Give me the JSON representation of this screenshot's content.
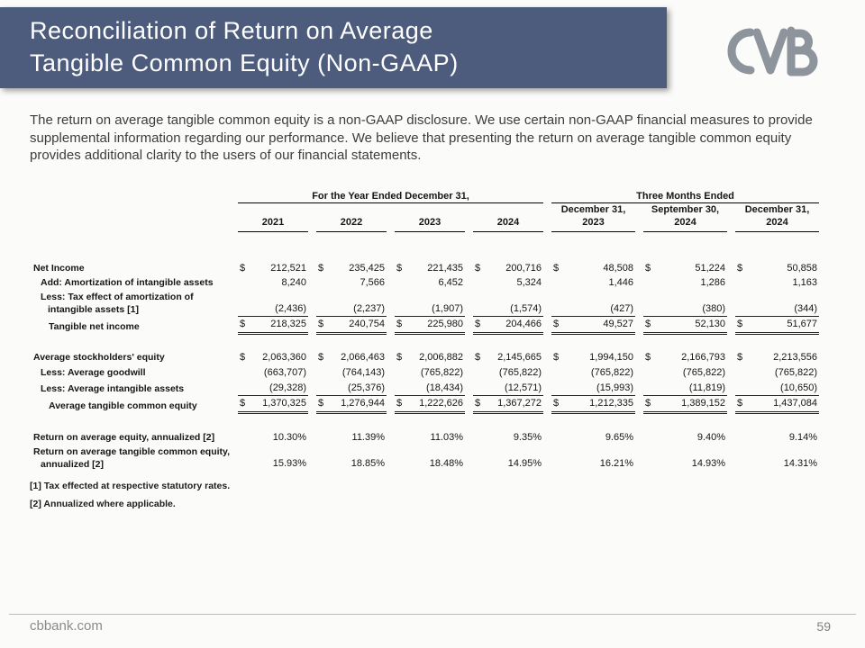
{
  "colors": {
    "band": "#4d5c7c",
    "logo": "#8e949b",
    "body_text": "#3d3d3d"
  },
  "header": {
    "title_line1": "Reconciliation of Return on Average",
    "title_line2": "Tangible Common Equity (Non-GAAP)",
    "logo_icon": "cvb-logo"
  },
  "intro": "The return on average tangible common equity is a non-GAAP disclosure. We use certain non-GAAP financial measures to provide supplemental information regarding our performance. We believe that presenting the return on average tangible common equity provides additional clarity to the users of our financial statements.",
  "table": {
    "group_headers": [
      {
        "label": "For the Year Ended December 31,",
        "span": 4
      },
      {
        "label": "Three Months Ended",
        "span": 3
      }
    ],
    "column_headers": [
      "2021",
      "2022",
      "2023",
      "2024",
      "December 31,\n2023",
      "September 30,\n2024",
      "December 31,\n2024"
    ],
    "rows": [
      {
        "type": "spacer",
        "h": 32
      },
      {
        "label": "Net Income",
        "indent": 0,
        "dollar": true,
        "values": [
          "212,521",
          "235,425",
          "221,435",
          "200,716",
          "48,508",
          "51,224",
          "50,858"
        ]
      },
      {
        "label": "Add: Amortization of intangible assets",
        "indent": 1,
        "dollar": false,
        "values": [
          "8,240",
          "7,566",
          "6,452",
          "5,324",
          "1,446",
          "1,286",
          "1,163"
        ]
      },
      {
        "label": [
          "Less: Tax effect of amortization of",
          "intangible assets [1]"
        ],
        "indent": 1,
        "dollar": false,
        "underline": "single",
        "values": [
          "(2,436)",
          "(2,237)",
          "(1,907)",
          "(1,574)",
          "(427)",
          "(380)",
          "(344)"
        ]
      },
      {
        "label": "Tangible net income",
        "indent": 2,
        "dollar": true,
        "underline": "double",
        "values": [
          "218,325",
          "240,754",
          "225,980",
          "204,466",
          "49,527",
          "52,130",
          "51,677"
        ]
      },
      {
        "type": "spacer",
        "h": 17
      },
      {
        "label": "Average stockholders' equity",
        "indent": 0,
        "dollar": true,
        "values": [
          "2,063,360",
          "2,066,463",
          "2,006,882",
          "2,145,665",
          "1,994,150",
          "2,166,793",
          "2,213,556"
        ]
      },
      {
        "label": "Less: Average goodwill",
        "indent": 1,
        "dollar": false,
        "values": [
          "(663,707)",
          "(764,143)",
          "(765,822)",
          "(765,822)",
          "(765,822)",
          "(765,822)",
          "(765,822)"
        ]
      },
      {
        "label": "Less: Average intangible assets",
        "indent": 1,
        "dollar": false,
        "underline": "single",
        "values": [
          "(29,328)",
          "(25,376)",
          "(18,434)",
          "(12,571)",
          "(15,993)",
          "(11,819)",
          "(10,650)"
        ]
      },
      {
        "label": "Average tangible common equity",
        "indent": 2,
        "dollar": true,
        "underline": "double",
        "values": [
          "1,370,325",
          "1,276,944",
          "1,222,626",
          "1,367,272",
          "1,212,335",
          "1,389,152",
          "1,437,084"
        ]
      },
      {
        "type": "spacer",
        "h": 18
      },
      {
        "label": "Return on average equity, annualized [2]",
        "indent": 0,
        "dollar": false,
        "values": [
          "10.30%",
          "11.39%",
          "11.03%",
          "9.35%",
          "9.65%",
          "9.40%",
          "9.14%"
        ]
      },
      {
        "label": [
          "Return on average tangible common equity,",
          "annualized [2]"
        ],
        "indent": 0,
        "dollar": false,
        "values": [
          "15.93%",
          "18.85%",
          "18.48%",
          "14.95%",
          "16.21%",
          "14.93%",
          "14.31%"
        ]
      }
    ]
  },
  "footnotes": [
    "[1] Tax effected at respective statutory rates.",
    "[2] Annualized where applicable."
  ],
  "footer": {
    "website": "cbbank.com",
    "page_number": "59"
  }
}
